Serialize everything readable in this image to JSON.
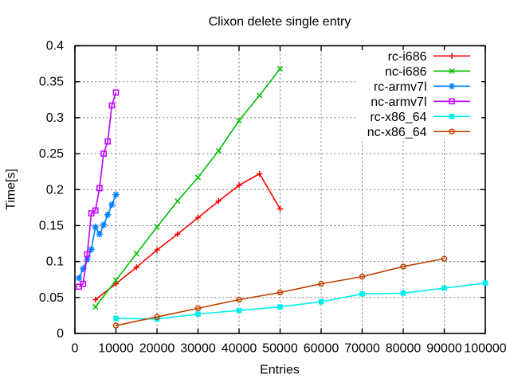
{
  "chart_data": {
    "type": "line",
    "title": "Clixon delete single entry",
    "xlabel": "Entries",
    "ylabel": "Time[s]",
    "xlim": [
      0,
      100000
    ],
    "ylim": [
      0,
      0.4
    ],
    "grid": true,
    "background": "#ffffff",
    "text_color": "#000000",
    "grid_color": "#808080",
    "border_color": "#000000",
    "legend_position": "top-right-inside",
    "xticks": {
      "values": [
        0,
        10000,
        20000,
        30000,
        40000,
        50000,
        60000,
        70000,
        80000,
        90000,
        100000
      ],
      "labels": [
        "0",
        "10000",
        "20000",
        "30000",
        "40000",
        "50000",
        "60000",
        "70000",
        "80000",
        "90000",
        "100000"
      ]
    },
    "yticks": {
      "values": [
        0,
        0.05,
        0.1,
        0.15,
        0.2,
        0.25,
        0.3,
        0.35,
        0.4
      ],
      "labels": [
        "0",
        "0.05",
        "0.1",
        "0.15",
        "0.2",
        "0.25",
        "0.3",
        "0.35",
        "0.4"
      ]
    },
    "series": [
      {
        "name": "rc-i686",
        "color": "#ff0000",
        "marker": "plus",
        "x": [
          5000,
          10000,
          15000,
          20000,
          25000,
          30000,
          35000,
          40000,
          45000,
          50000
        ],
        "y": [
          0.047,
          0.069,
          0.092,
          0.116,
          0.138,
          0.161,
          0.184,
          0.206,
          0.222,
          0.173
        ]
      },
      {
        "name": "nc-i686",
        "color": "#00c000",
        "marker": "cross",
        "x": [
          5000,
          10000,
          15000,
          20000,
          25000,
          30000,
          35000,
          40000,
          45000,
          50000
        ],
        "y": [
          0.037,
          0.074,
          0.111,
          0.148,
          0.184,
          0.217,
          0.254,
          0.296,
          0.331,
          0.368
        ]
      },
      {
        "name": "rc-armv7l",
        "color": "#0080ff",
        "marker": "asterisk",
        "x": [
          1000,
          2000,
          3000,
          4000,
          5000,
          6000,
          7000,
          8000,
          9000,
          10000
        ],
        "y": [
          0.077,
          0.09,
          0.103,
          0.117,
          0.148,
          0.138,
          0.151,
          0.165,
          0.179,
          0.193
        ]
      },
      {
        "name": "nc-armv7l",
        "color": "#c000ff",
        "marker": "open-square",
        "x": [
          1000,
          2000,
          3000,
          4000,
          5000,
          6000,
          7000,
          8000,
          9000,
          10000
        ],
        "y": [
          0.065,
          0.069,
          0.11,
          0.167,
          0.171,
          0.202,
          0.25,
          0.267,
          0.317,
          0.335
        ]
      },
      {
        "name": "rc-x86_64",
        "color": "#00eeee",
        "marker": "filled-square",
        "x": [
          10000,
          20000,
          30000,
          40000,
          50000,
          60000,
          70000,
          80000,
          90000,
          100000
        ],
        "y": [
          0.021,
          0.02,
          0.027,
          0.032,
          0.037,
          0.044,
          0.055,
          0.056,
          0.063,
          0.07
        ]
      },
      {
        "name": "nc-x86_64",
        "color": "#c04000",
        "marker": "open-circle",
        "x": [
          10000,
          20000,
          30000,
          40000,
          50000,
          60000,
          70000,
          80000,
          90000
        ],
        "y": [
          0.011,
          0.023,
          0.035,
          0.047,
          0.057,
          0.069,
          0.079,
          0.093,
          0.104
        ]
      }
    ]
  }
}
